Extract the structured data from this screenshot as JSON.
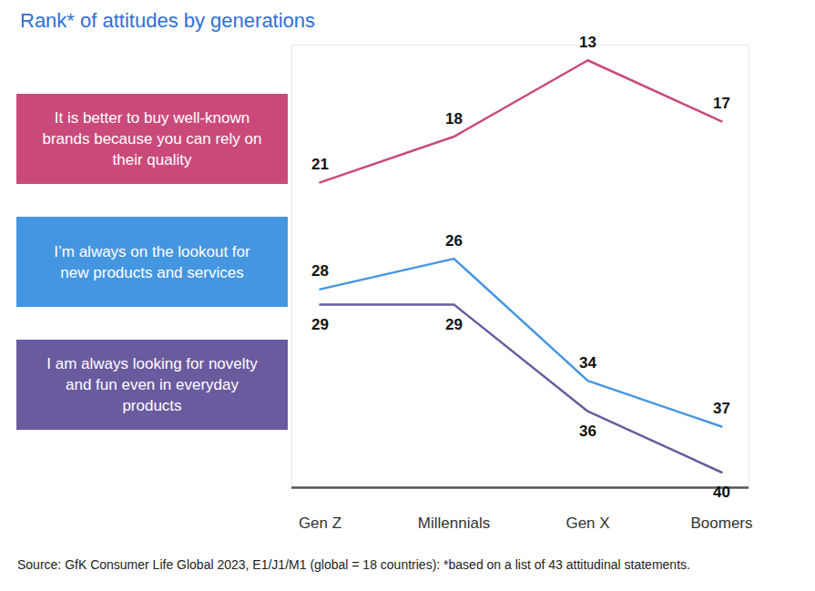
{
  "chart_data": {
    "type": "line",
    "title": "Rank* of attitudes by generations",
    "caption": "Source: GfK Consumer Life Global 2023, E1/J1/M1 (global = 18 countries): *based on a list of 43 attitudinal statements.",
    "categories": [
      "Gen Z",
      "Millennials",
      "Gen X",
      "Boomers"
    ],
    "series": [
      {
        "name": "It is better to buy well-known brands because you can rely on their quality",
        "color": "#c94a7a",
        "values": [
          21,
          18,
          13,
          17
        ]
      },
      {
        "name": "I’m always on the lookout for new products and services",
        "color": "#4596e0",
        "values": [
          28,
          26,
          34,
          37
        ]
      },
      {
        "name": "I am always looking for novelty and fun even in everyday products",
        "color": "#6a5a9e",
        "values": [
          29,
          29,
          36,
          40
        ]
      }
    ],
    "ylim": [
      41,
      12
    ],
    "yticks": [],
    "tick_labels": "x",
    "data_labels": true,
    "legend": "left"
  }
}
